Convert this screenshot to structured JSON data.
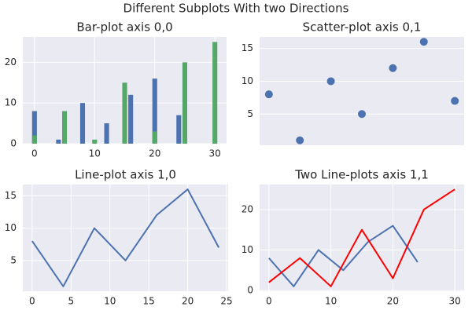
{
  "title": "Different Subplots With two Directions",
  "chart_data": [
    {
      "type": "bar",
      "title": "Bar-plot axis 0,0",
      "series": [
        {
          "color": "#4c72b0",
          "x": [
            0,
            4,
            8,
            12,
            16,
            20,
            24
          ],
          "values": [
            8,
            1,
            10,
            5,
            12,
            16,
            7
          ]
        },
        {
          "color": "#55a868",
          "x": [
            0,
            5,
            10,
            15,
            20,
            25,
            30
          ],
          "values": [
            2,
            8,
            1,
            15,
            3,
            20,
            25
          ]
        }
      ],
      "xlim": [
        -1.94,
        31.94
      ],
      "xticks": [
        0,
        10,
        20,
        30
      ],
      "ylim": [
        0,
        26.25
      ],
      "yticks": [
        0,
        10,
        20
      ],
      "grid": true
    },
    {
      "type": "scatter",
      "title": "Scatter-plot axis 0,1",
      "series": [
        {
          "color": "#4c72b0",
          "x": [
            0,
            4,
            8,
            12,
            16,
            20,
            24
          ],
          "values": [
            8,
            1,
            10,
            5,
            12,
            16,
            7
          ]
        }
      ],
      "xlim": [
        -1.2,
        25.2
      ],
      "ylim": [
        0.25,
        16.75
      ],
      "yticks": [
        5,
        10,
        15
      ],
      "grid": true
    },
    {
      "type": "line",
      "title": "Line-plot axis 1,0",
      "series": [
        {
          "color": "#4c72b0",
          "x": [
            0,
            4,
            8,
            12,
            16,
            20,
            24
          ],
          "values": [
            8,
            1,
            10,
            5,
            12,
            16,
            7
          ]
        }
      ],
      "xlim": [
        -1.2,
        25.2
      ],
      "xticks": [
        0,
        5,
        10,
        15,
        20,
        25
      ],
      "ylim": [
        0.25,
        16.75
      ],
      "yticks": [
        5,
        10,
        15
      ],
      "grid": true
    },
    {
      "type": "line",
      "title": "Two Line-plots axis 1,1",
      "series": [
        {
          "color": "#4c72b0",
          "x": [
            0,
            4,
            8,
            12,
            16,
            20,
            24
          ],
          "values": [
            8,
            1,
            10,
            5,
            12,
            16,
            7
          ]
        },
        {
          "color": "#ff0000",
          "x": [
            0,
            5,
            10,
            15,
            20,
            25,
            30
          ],
          "values": [
            2,
            8,
            1,
            15,
            3,
            20,
            25
          ]
        }
      ],
      "xlim": [
        -1.5,
        31.5
      ],
      "xticks": [
        0,
        10,
        20,
        30
      ],
      "ylim": [
        -0.2,
        26.2
      ],
      "yticks": [
        0,
        10,
        20
      ],
      "grid": true
    }
  ]
}
